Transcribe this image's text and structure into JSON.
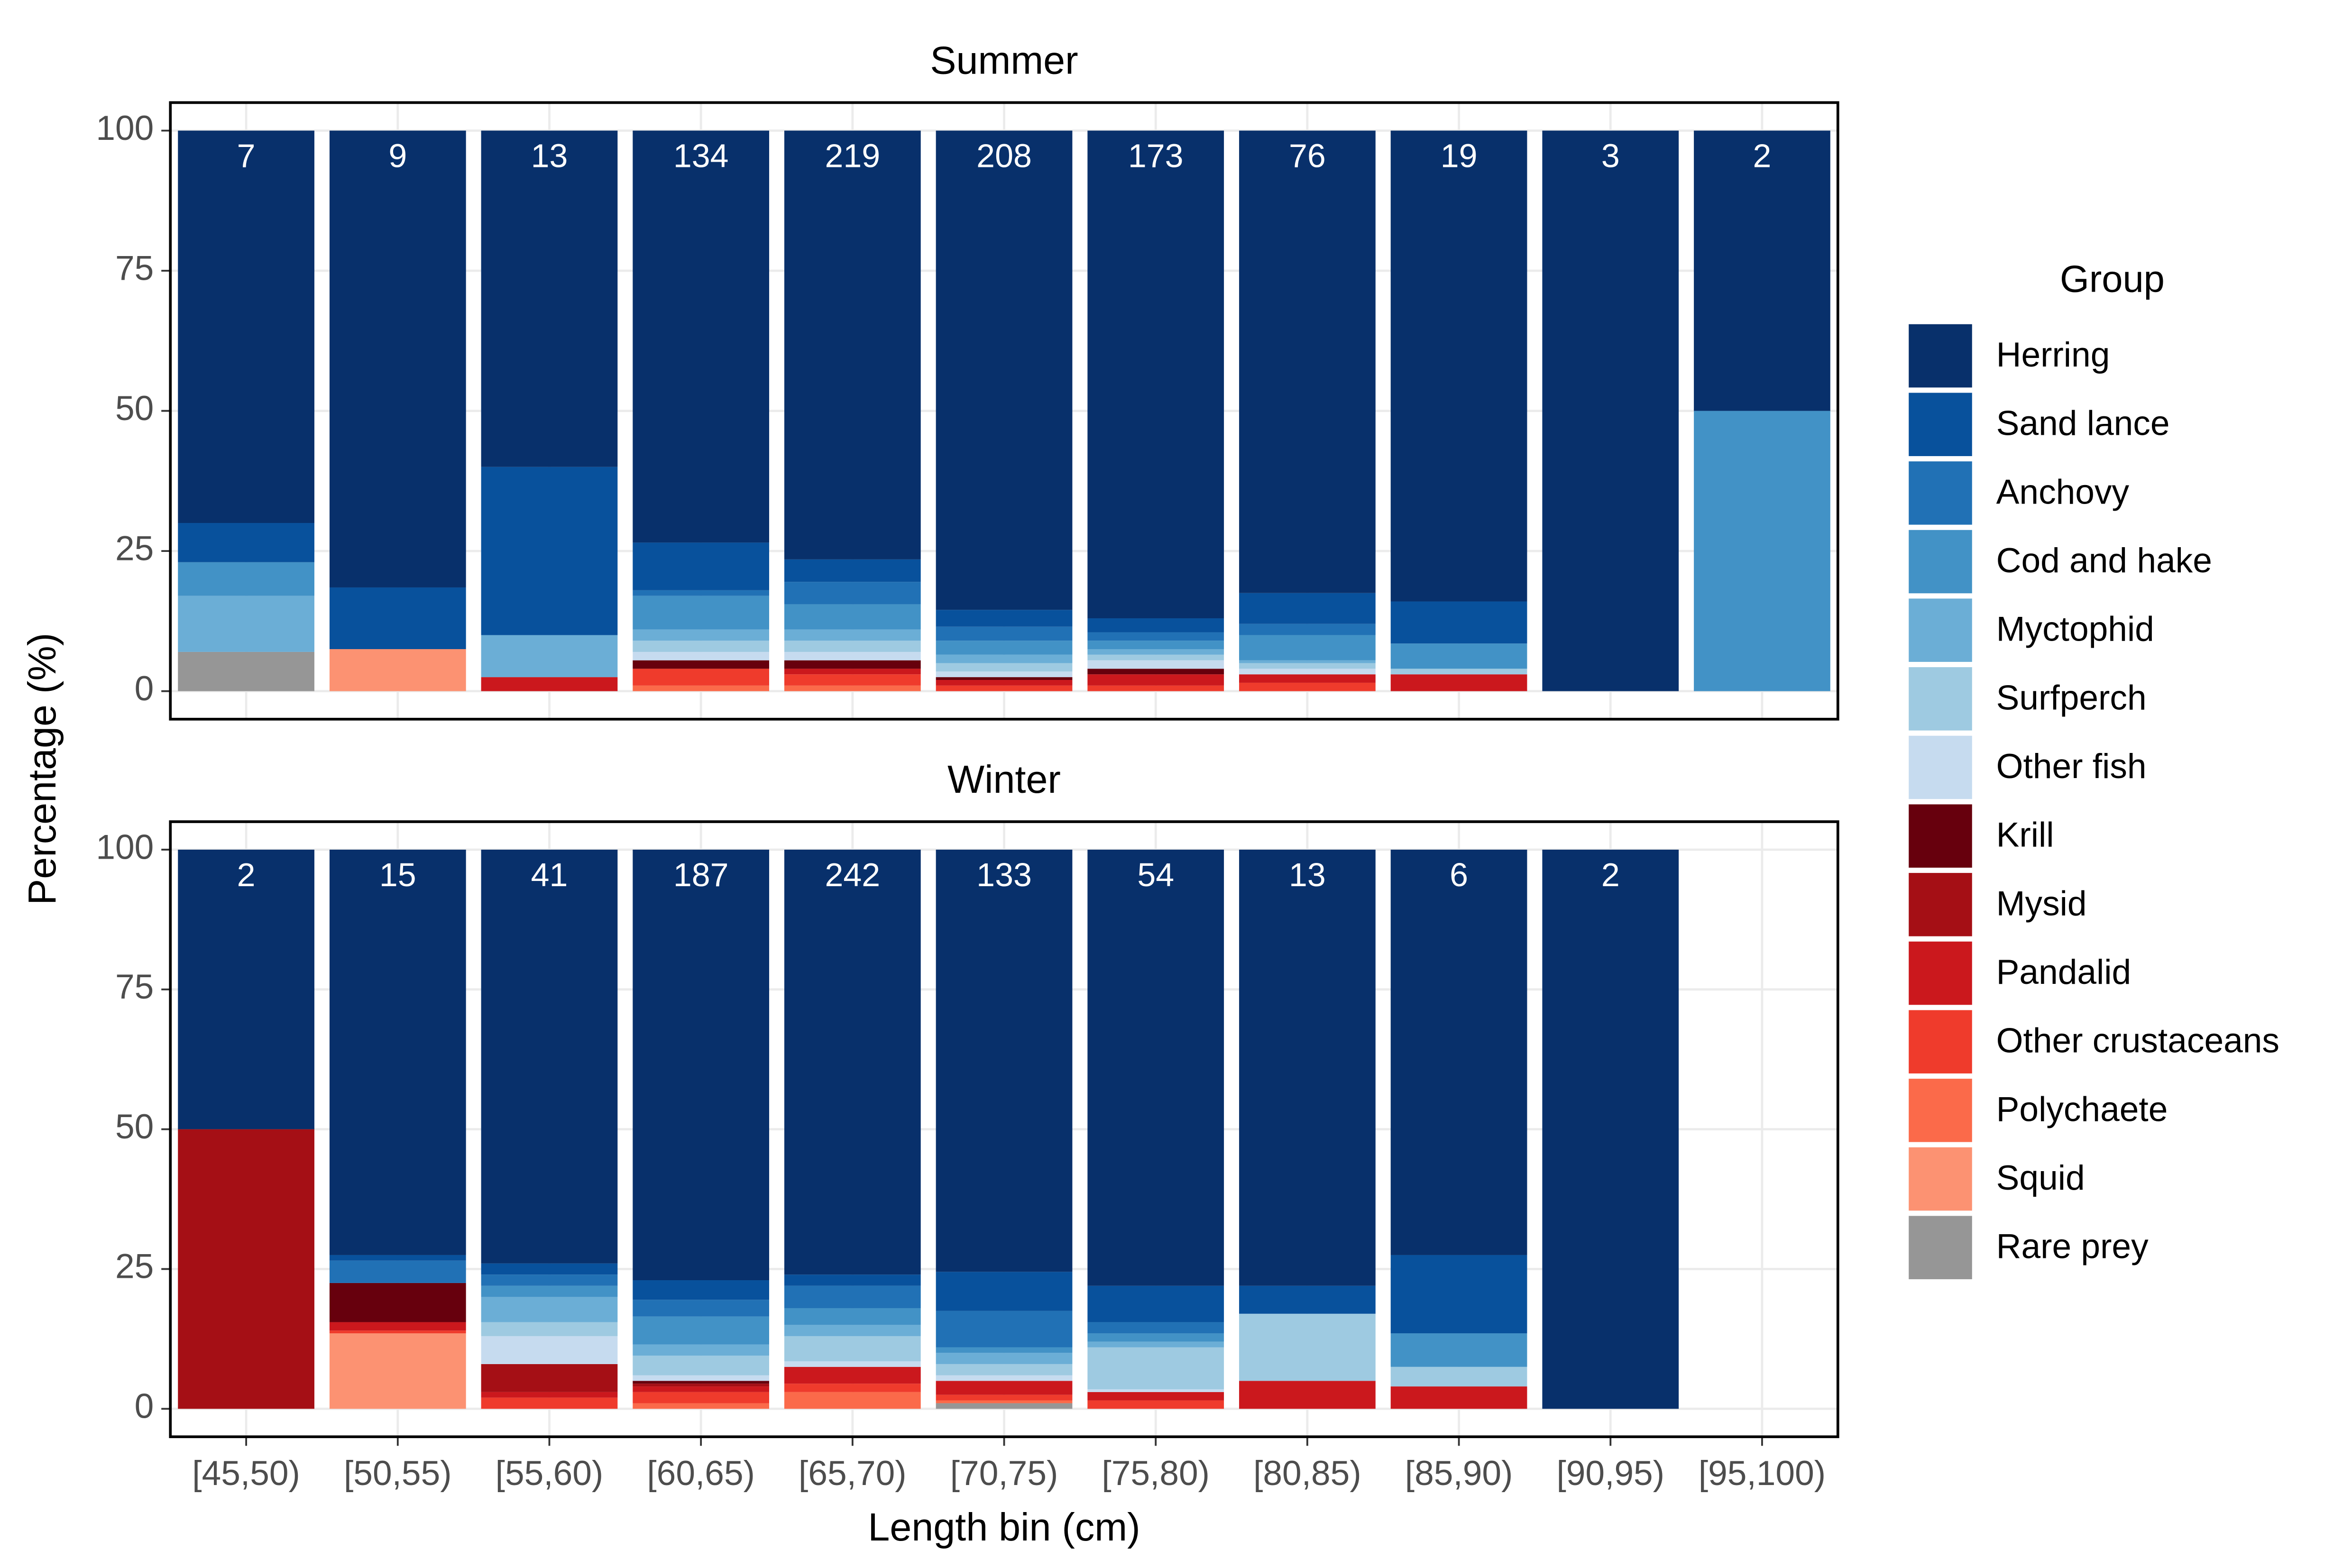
{
  "chart_data": [
    {
      "type": "bar",
      "stacked": true,
      "title": "Summer",
      "ylabel": "Percentage (%)",
      "legend_title": "Group",
      "categories": [
        "[45,50)",
        "[50,55)",
        "[55,60)",
        "[60,65)",
        "[65,70)",
        "[70,75)",
        "[75,80)",
        "[80,85)",
        "[85,90)",
        "[90,95)",
        "[95,100)"
      ],
      "annotations": [
        7,
        9,
        13,
        134,
        219,
        208,
        173,
        76,
        19,
        3,
        2
      ],
      "ylim": [
        -5,
        105
      ],
      "yticks": [
        0,
        25,
        50,
        75,
        100
      ],
      "grid": true,
      "series": [
        {
          "name": "Herring",
          "color": "#08306b",
          "values": [
            70,
            81.5,
            60,
            73.5,
            76.5,
            85.5,
            87,
            82.5,
            84,
            100,
            50
          ]
        },
        {
          "name": "Sand lance",
          "color": "#08519c",
          "values": [
            7,
            11,
            30,
            8.5,
            4,
            3,
            2.5,
            5.5,
            7.5,
            0,
            0
          ]
        },
        {
          "name": "Anchovy",
          "color": "#2171b5",
          "values": [
            0,
            0,
            0,
            1,
            4,
            2.5,
            1.5,
            2,
            0,
            0,
            0
          ]
        },
        {
          "name": "Cod and hake",
          "color": "#4292c6",
          "values": [
            6,
            0,
            0,
            6,
            4.5,
            2.5,
            1.5,
            4.5,
            4.5,
            0,
            50
          ]
        },
        {
          "name": "Myctophid",
          "color": "#6baed6",
          "values": [
            10,
            0,
            7.5,
            2,
            2,
            1.5,
            1,
            0.5,
            0,
            0,
            0
          ]
        },
        {
          "name": "Surfperch",
          "color": "#9ecae1",
          "values": [
            0,
            0,
            0,
            2,
            2,
            1.5,
            1,
            1,
            1,
            0,
            0
          ]
        },
        {
          "name": "Other fish",
          "color": "#c6dbef",
          "values": [
            0,
            0,
            0,
            1.5,
            1.5,
            1,
            1.5,
            1,
            0,
            0,
            0
          ]
        },
        {
          "name": "Krill",
          "color": "#67000d",
          "values": [
            0,
            0,
            0,
            1.5,
            1.5,
            0.5,
            1,
            0,
            0,
            0,
            0
          ]
        },
        {
          "name": "Mysid",
          "color": "#a50f15",
          "values": [
            0,
            0,
            0,
            0,
            0,
            0,
            0,
            0,
            0,
            0,
            0
          ]
        },
        {
          "name": "Pandalid",
          "color": "#cb181d",
          "values": [
            0,
            0,
            2.5,
            0,
            1,
            1,
            2,
            1.5,
            3,
            0,
            0
          ]
        },
        {
          "name": "Other crustaceans",
          "color": "#ef3b2c",
          "values": [
            0,
            0,
            0,
            3,
            2,
            1,
            1,
            1.5,
            0,
            0,
            0
          ]
        },
        {
          "name": "Polychaete",
          "color": "#fb6a4a",
          "values": [
            0,
            0,
            0,
            1,
            1,
            0,
            0,
            0,
            0,
            0,
            0
          ]
        },
        {
          "name": "Squid",
          "color": "#fc9272",
          "values": [
            0,
            7.5,
            0,
            0,
            0,
            0,
            0,
            0,
            0,
            0,
            0
          ]
        },
        {
          "name": "Rare prey",
          "color": "#969696",
          "values": [
            7,
            0,
            0,
            0,
            0,
            0,
            0,
            0,
            0,
            0,
            0
          ]
        }
      ]
    },
    {
      "type": "bar",
      "stacked": true,
      "title": "Winter",
      "xlabel": "Length bin (cm)",
      "categories": [
        "[45,50)",
        "[50,55)",
        "[55,60)",
        "[60,65)",
        "[65,70)",
        "[70,75)",
        "[75,80)",
        "[80,85)",
        "[85,90)",
        "[90,95)",
        "[95,100)"
      ],
      "annotations": [
        2,
        15,
        41,
        187,
        242,
        133,
        54,
        13,
        6,
        2,
        null
      ],
      "ylim": [
        -5,
        105
      ],
      "yticks": [
        0,
        25,
        50,
        75,
        100
      ],
      "grid": true,
      "series": [
        {
          "name": "Herring",
          "color": "#08306b",
          "values": [
            50,
            72.5,
            74,
            77,
            76,
            75.5,
            78,
            78,
            72.5,
            100,
            null
          ]
        },
        {
          "name": "Sand lance",
          "color": "#08519c",
          "values": [
            0,
            1,
            2,
            3.5,
            2,
            7,
            6.5,
            5,
            14,
            0,
            null
          ]
        },
        {
          "name": "Anchovy",
          "color": "#2171b5",
          "values": [
            0,
            4,
            2,
            3,
            4,
            6.5,
            2,
            0,
            0,
            0,
            null
          ]
        },
        {
          "name": "Cod and hake",
          "color": "#4292c6",
          "values": [
            0,
            0,
            2,
            5,
            3,
            1,
            1.5,
            0,
            6,
            0,
            null
          ]
        },
        {
          "name": "Myctophid",
          "color": "#6baed6",
          "values": [
            0,
            0,
            4.5,
            2,
            2,
            2,
            1,
            0,
            0,
            0,
            null
          ]
        },
        {
          "name": "Surfperch",
          "color": "#9ecae1",
          "values": [
            0,
            0,
            2.5,
            3.5,
            4.5,
            2,
            7.5,
            12,
            3.5,
            0,
            null
          ]
        },
        {
          "name": "Other fish",
          "color": "#c6dbef",
          "values": [
            0,
            0,
            5,
            1,
            1,
            1,
            0.5,
            0,
            0,
            0,
            null
          ]
        },
        {
          "name": "Krill",
          "color": "#67000d",
          "values": [
            0,
            7,
            0,
            0.5,
            0,
            0,
            0,
            0,
            0,
            0,
            null
          ]
        },
        {
          "name": "Mysid",
          "color": "#a50f15",
          "values": [
            50,
            0,
            5,
            0.5,
            0,
            0,
            0,
            0,
            0,
            0,
            null
          ]
        },
        {
          "name": "Pandalid",
          "color": "#cb181d",
          "values": [
            0,
            1.5,
            1,
            1,
            3,
            2.5,
            1.5,
            5,
            4,
            0,
            null
          ]
        },
        {
          "name": "Other crustaceans",
          "color": "#ef3b2c",
          "values": [
            0,
            0.5,
            2,
            2,
            1.5,
            1,
            1.5,
            0,
            0,
            0,
            null
          ]
        },
        {
          "name": "Polychaete",
          "color": "#fb6a4a",
          "values": [
            0,
            0,
            0,
            1,
            3,
            0.5,
            0,
            0,
            0,
            0,
            null
          ]
        },
        {
          "name": "Squid",
          "color": "#fc9272",
          "values": [
            0,
            13.5,
            0,
            0,
            0,
            0,
            0,
            0,
            0,
            0,
            null
          ]
        },
        {
          "name": "Rare prey",
          "color": "#969696",
          "values": [
            0,
            0,
            0,
            0,
            0,
            1,
            0,
            0,
            0,
            0,
            null
          ]
        }
      ]
    }
  ]
}
